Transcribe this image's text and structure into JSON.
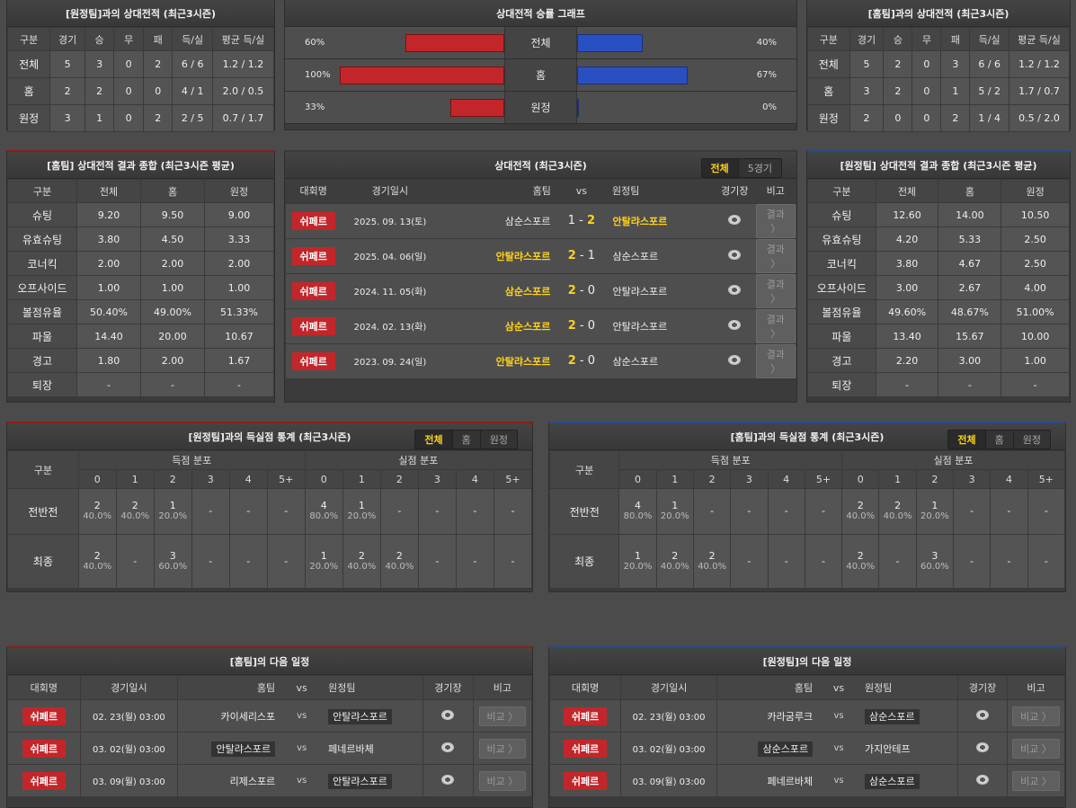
{
  "colors": {
    "home_accent": "#8e1c1c",
    "away_accent": "#2b4a8c",
    "red_bar": "#c3262a",
    "blue_bar": "#2a4fc0",
    "highlight": "#ffd21a"
  },
  "h2h_away": {
    "title": "[원정팀]과의 상대전적 (최근3시즌)",
    "headers": [
      "구분",
      "경기",
      "승",
      "무",
      "패",
      "득/실",
      "평균 득/실"
    ],
    "rows": [
      [
        "전체",
        "5",
        "3",
        "0",
        "2",
        "6 / 6",
        "1.2 / 1.2"
      ],
      [
        "홈",
        "2",
        "2",
        "0",
        "0",
        "4 / 1",
        "2.0 / 0.5"
      ],
      [
        "원정",
        "3",
        "1",
        "0",
        "2",
        "2 / 5",
        "0.7 / 1.7"
      ]
    ]
  },
  "h2h_home": {
    "title": "[홈팀]과의 상대전적 (최근3시즌)",
    "headers": [
      "구분",
      "경기",
      "승",
      "무",
      "패",
      "득/실",
      "평균 득/실"
    ],
    "rows": [
      [
        "전체",
        "5",
        "2",
        "0",
        "3",
        "6 / 6",
        "1.2 / 1.2"
      ],
      [
        "홈",
        "3",
        "2",
        "0",
        "1",
        "5 / 2",
        "1.7 / 0.7"
      ],
      [
        "원정",
        "2",
        "0",
        "0",
        "2",
        "1 / 4",
        "0.5 / 2.0"
      ]
    ]
  },
  "graph": {
    "title": "상대전적 승률 그래프",
    "rows": [
      {
        "label": "전체",
        "left": 60,
        "left_text": "60%",
        "right": 40,
        "right_text": "40%"
      },
      {
        "label": "홈",
        "left": 100,
        "left_text": "100%",
        "right": 67,
        "right_text": "67%"
      },
      {
        "label": "원정",
        "left": 33,
        "left_text": "33%",
        "right": 0,
        "right_text": "0%"
      }
    ]
  },
  "avg_home": {
    "title": "[홈팀] 상대전적 결과 종합 (최근3시즌 평균)",
    "headers": [
      "구분",
      "전체",
      "홈",
      "원정"
    ],
    "rows": [
      [
        "슈팅",
        "9.20",
        "9.50",
        "9.00"
      ],
      [
        "유효슈팅",
        "3.80",
        "4.50",
        "3.33"
      ],
      [
        "코너킥",
        "2.00",
        "2.00",
        "2.00"
      ],
      [
        "오프사이드",
        "1.00",
        "1.00",
        "1.00"
      ],
      [
        "볼점유율",
        "50.40%",
        "49.00%",
        "51.33%"
      ],
      [
        "파울",
        "14.40",
        "20.00",
        "10.67"
      ],
      [
        "경고",
        "1.80",
        "2.00",
        "1.67"
      ],
      [
        "퇴장",
        "-",
        "-",
        "-"
      ]
    ]
  },
  "avg_away": {
    "title": "[원정팀] 상대전적 결과 종합 (최근3시즌 평균)",
    "headers": [
      "구분",
      "전체",
      "홈",
      "원정"
    ],
    "rows": [
      [
        "슈팅",
        "12.60",
        "14.00",
        "10.50"
      ],
      [
        "유효슈팅",
        "4.20",
        "5.33",
        "2.50"
      ],
      [
        "코너킥",
        "3.80",
        "4.67",
        "2.50"
      ],
      [
        "오프사이드",
        "3.00",
        "2.67",
        "4.00"
      ],
      [
        "볼점유율",
        "49.60%",
        "48.67%",
        "51.00%"
      ],
      [
        "파울",
        "13.40",
        "15.67",
        "10.00"
      ],
      [
        "경고",
        "2.20",
        "3.00",
        "1.00"
      ],
      [
        "퇴장",
        "-",
        "-",
        "-"
      ]
    ]
  },
  "matches": {
    "title": "상대전적 (최근3시즌)",
    "tabs": [
      "전체",
      "5경기"
    ],
    "headers": [
      "대회명",
      "경기일시",
      "홈팀",
      "vs",
      "원정팀",
      "경기장",
      "비고"
    ],
    "button": "결과 〉",
    "rows": [
      {
        "league": "쉬페르",
        "date": "2025. 09. 13(토)",
        "home": "삼순스포르",
        "hs": "1",
        "as": "2",
        "away": "안탈랴스포르",
        "winner": "away"
      },
      {
        "league": "쉬페르",
        "date": "2025. 04. 06(일)",
        "home": "안탈랴스포르",
        "hs": "2",
        "as": "1",
        "away": "삼순스포르",
        "winner": "home"
      },
      {
        "league": "쉬페르",
        "date": "2024. 11. 05(화)",
        "home": "삼순스포르",
        "hs": "2",
        "as": "0",
        "away": "안탈랴스포르",
        "winner": "home"
      },
      {
        "league": "쉬페르",
        "date": "2024. 02. 13(화)",
        "home": "삼순스포르",
        "hs": "2",
        "as": "0",
        "away": "안탈랴스포르",
        "winner": "home"
      },
      {
        "league": "쉬페르",
        "date": "2023. 09. 24(일)",
        "home": "안탈랴스포르",
        "hs": "2",
        "as": "0",
        "away": "삼순스포르",
        "winner": "home"
      }
    ]
  },
  "goals_away": {
    "title": "[원정팀]과의 득실점 통계 (최근3시즌)",
    "tabs": [
      "전체",
      "홈",
      "원정"
    ],
    "label": "구분",
    "scored": "득점 분포",
    "conceded": "실점 분포",
    "cols": [
      "0",
      "1",
      "2",
      "3",
      "4",
      "5+"
    ],
    "rows": [
      {
        "label": "전반전",
        "scored": [
          [
            "2",
            "40.0%"
          ],
          [
            "2",
            "40.0%"
          ],
          [
            "1",
            "20.0%"
          ],
          [
            "-",
            ""
          ],
          [
            "-",
            ""
          ],
          [
            "-",
            ""
          ]
        ],
        "conceded": [
          [
            "4",
            "80.0%"
          ],
          [
            "1",
            "20.0%"
          ],
          [
            "-",
            ""
          ],
          [
            "-",
            ""
          ],
          [
            "-",
            ""
          ],
          [
            "-",
            ""
          ]
        ]
      },
      {
        "label": "최종",
        "scored": [
          [
            "2",
            "40.0%"
          ],
          [
            "-",
            ""
          ],
          [
            "3",
            "60.0%"
          ],
          [
            "-",
            ""
          ],
          [
            "-",
            ""
          ],
          [
            "-",
            ""
          ]
        ],
        "conceded": [
          [
            "1",
            "20.0%"
          ],
          [
            "2",
            "40.0%"
          ],
          [
            "2",
            "40.0%"
          ],
          [
            "-",
            ""
          ],
          [
            "-",
            ""
          ],
          [
            "-",
            ""
          ]
        ]
      }
    ]
  },
  "goals_home": {
    "title": "[홈팀]과의 득실점 통계 (최근3시즌)",
    "tabs": [
      "전체",
      "홈",
      "원정"
    ],
    "label": "구분",
    "scored": "득점 분포",
    "conceded": "실점 분포",
    "cols": [
      "0",
      "1",
      "2",
      "3",
      "4",
      "5+"
    ],
    "rows": [
      {
        "label": "전반전",
        "scored": [
          [
            "4",
            "80.0%"
          ],
          [
            "1",
            "20.0%"
          ],
          [
            "-",
            ""
          ],
          [
            "-",
            ""
          ],
          [
            "-",
            ""
          ],
          [
            "-",
            ""
          ]
        ],
        "conceded": [
          [
            "2",
            "40.0%"
          ],
          [
            "2",
            "40.0%"
          ],
          [
            "1",
            "20.0%"
          ],
          [
            "-",
            ""
          ],
          [
            "-",
            ""
          ],
          [
            "-",
            ""
          ]
        ]
      },
      {
        "label": "최종",
        "scored": [
          [
            "1",
            "20.0%"
          ],
          [
            "2",
            "40.0%"
          ],
          [
            "2",
            "40.0%"
          ],
          [
            "-",
            ""
          ],
          [
            "-",
            ""
          ],
          [
            "-",
            ""
          ]
        ],
        "conceded": [
          [
            "2",
            "40.0%"
          ],
          [
            "-",
            ""
          ],
          [
            "3",
            "60.0%"
          ],
          [
            "-",
            ""
          ],
          [
            "-",
            ""
          ],
          [
            "-",
            ""
          ]
        ]
      }
    ]
  },
  "next_home": {
    "title": "[홈팀]의 다음 일정",
    "headers": [
      "대회명",
      "경기일시",
      "홈팀",
      "vs",
      "원정팀",
      "경기장",
      "비고"
    ],
    "button": "비교 〉",
    "rows": [
      {
        "league": "쉬페르",
        "date": "02. 23(월) 03:00",
        "home": "카이세리스포",
        "away": "안탈랴스포르",
        "team": "away"
      },
      {
        "league": "쉬페르",
        "date": "03. 02(월) 03:00",
        "home": "안탈랴스포르",
        "away": "페네르바체",
        "team": "home"
      },
      {
        "league": "쉬페르",
        "date": "03. 09(월) 03:00",
        "home": "리제스포르",
        "away": "안탈랴스포르",
        "team": "away"
      }
    ]
  },
  "next_away": {
    "title": "[원정팀]의 다음 일정",
    "headers": [
      "대회명",
      "경기일시",
      "홈팀",
      "vs",
      "원정팀",
      "경기장",
      "비고"
    ],
    "button": "비교 〉",
    "rows": [
      {
        "league": "쉬페르",
        "date": "02. 23(월) 03:00",
        "home": "카라굼루크",
        "away": "삼순스포르",
        "team": "away"
      },
      {
        "league": "쉬페르",
        "date": "03. 02(월) 03:00",
        "home": "삼순스포르",
        "away": "가지안테프",
        "team": "home"
      },
      {
        "league": "쉬페르",
        "date": "03. 09(월) 03:00",
        "home": "페네르바체",
        "away": "삼순스포르",
        "team": "away"
      }
    ]
  }
}
